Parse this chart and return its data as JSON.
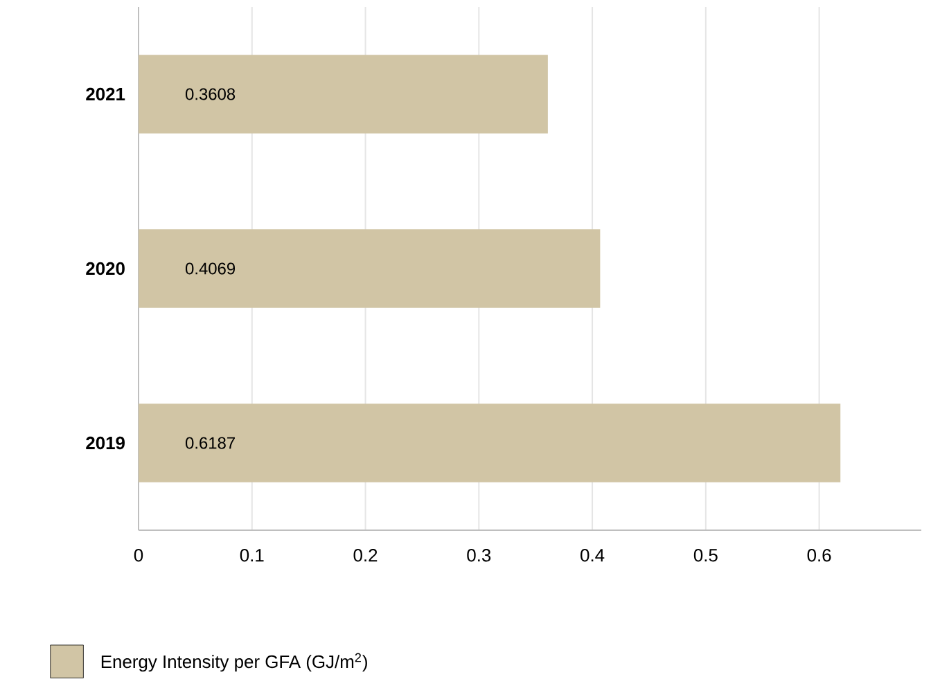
{
  "chart_data": {
    "type": "bar",
    "orientation": "horizontal",
    "categories": [
      "2021",
      "2020",
      "2019"
    ],
    "series": [
      {
        "name": "Energy Intensity per GFA (GJ/m$^{2}$)",
        "color": "#d1c5a5",
        "values": [
          0.3608,
          0.4069,
          0.6187
        ]
      }
    ],
    "xlim": [
      0,
      0.69
    ],
    "xticks": [
      0,
      0.1,
      0.2,
      0.3,
      0.4,
      0.5,
      0.6
    ],
    "grid": "x",
    "data_labels": true,
    "legend": "bottom left"
  }
}
